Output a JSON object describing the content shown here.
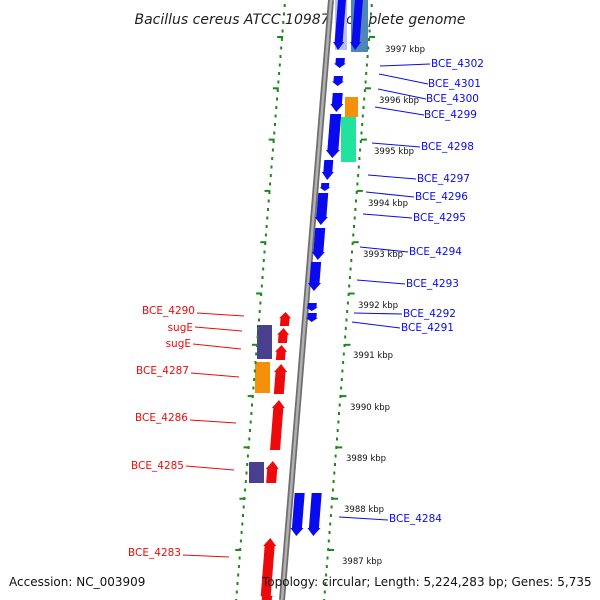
{
  "title": "Bacillus cereus ATCC 10987, complete genome",
  "footer": {
    "accession": "Accession: NC_003909",
    "topology": "Topology: circular; Length: 5,224,283 bp; Genes: 5,735"
  },
  "colors": {
    "forward_strand": "#0a0aee",
    "reverse_strand": "#ee0a0a",
    "backbone": "#8c8c8c",
    "ticks": "#1a8a1a"
  },
  "kbp_markers": [
    {
      "label": "3997 kbp"
    },
    {
      "label": "3996 kbp"
    },
    {
      "label": "3995 kbp"
    },
    {
      "label": "3994 kbp"
    },
    {
      "label": "3993 kbp"
    },
    {
      "label": "3992 kbp"
    },
    {
      "label": "3991 kbp"
    },
    {
      "label": "3990 kbp"
    },
    {
      "label": "3989 kbp"
    },
    {
      "label": "3988 kbp"
    },
    {
      "label": "3987 kbp"
    }
  ],
  "gene_labels_forward": [
    {
      "label": "BCE_4302"
    },
    {
      "label": "BCE_4301"
    },
    {
      "label": "BCE_4300"
    },
    {
      "label": "BCE_4299"
    },
    {
      "label": "BCE_4298"
    },
    {
      "label": "BCE_4297"
    },
    {
      "label": "BCE_4296"
    },
    {
      "label": "BCE_4295"
    },
    {
      "label": "BCE_4294"
    },
    {
      "label": "BCE_4293"
    },
    {
      "label": "BCE_4292"
    },
    {
      "label": "BCE_4291"
    },
    {
      "label": "BCE_4284"
    }
  ],
  "gene_labels_reverse": [
    {
      "label": "BCE_4290"
    },
    {
      "label": "sugE"
    },
    {
      "label": "sugE"
    },
    {
      "label": "BCE_4287"
    },
    {
      "label": "BCE_4286"
    },
    {
      "label": "BCE_4285"
    },
    {
      "label": "BCE_4283"
    }
  ]
}
